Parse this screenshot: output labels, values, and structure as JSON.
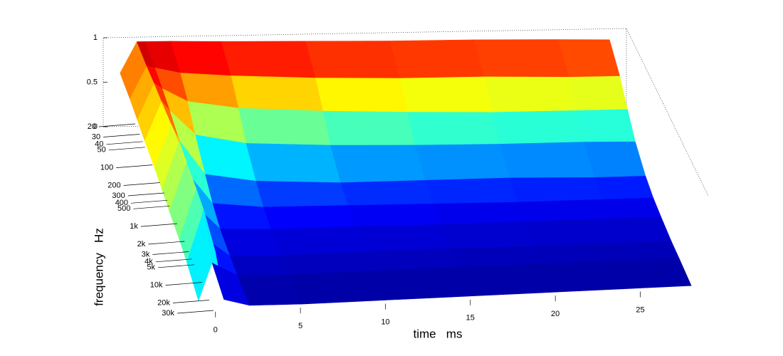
{
  "chart_data": {
    "type": "surface",
    "colormap": "jet",
    "x_label": "time   ms",
    "y_label": "frequency   Hz",
    "x": [
      -1,
      0,
      0.5,
      2,
      5,
      10,
      15,
      20,
      25,
      28
    ],
    "y": [
      20,
      50,
      100,
      200,
      500,
      1000,
      2000,
      5000,
      10000,
      30000
    ],
    "z": [
      [
        0.6,
        0.95,
        0.95,
        0.95,
        0.94,
        0.93,
        0.92,
        0.92,
        0.91,
        0.9
      ],
      [
        0.55,
        0.9,
        0.88,
        0.82,
        0.78,
        0.74,
        0.72,
        0.72,
        0.7,
        0.7
      ],
      [
        0.5,
        0.88,
        0.82,
        0.68,
        0.6,
        0.55,
        0.52,
        0.5,
        0.5,
        0.5
      ],
      [
        0.45,
        0.85,
        0.75,
        0.5,
        0.4,
        0.36,
        0.34,
        0.33,
        0.33,
        0.32
      ],
      [
        0.4,
        0.82,
        0.65,
        0.32,
        0.24,
        0.2,
        0.2,
        0.2,
        0.18,
        0.18
      ],
      [
        0.35,
        0.8,
        0.5,
        0.2,
        0.15,
        0.14,
        0.13,
        0.12,
        0.12,
        0.12
      ],
      [
        0.3,
        0.75,
        0.35,
        0.12,
        0.1,
        0.1,
        0.09,
        0.09,
        0.09,
        0.09
      ],
      [
        0.25,
        0.7,
        0.25,
        0.08,
        0.07,
        0.07,
        0.07,
        0.06,
        0.06,
        0.06
      ],
      [
        0.2,
        0.65,
        0.18,
        0.06,
        0.05,
        0.05,
        0.05,
        0.05,
        0.05,
        0.05
      ],
      [
        0.1,
        0.5,
        0.1,
        0.04,
        0.03,
        0.03,
        0.03,
        0.03,
        0.03,
        0.03
      ]
    ],
    "xlim": [
      -2,
      29
    ],
    "ylim": [
      20,
      30000
    ],
    "zlim": [
      0,
      1
    ],
    "ylog": true,
    "xticks": [
      0,
      5,
      10,
      15,
      20,
      25
    ],
    "yticks": [
      20,
      30,
      40,
      50,
      100,
      200,
      300,
      400,
      500,
      {
        "value": 1000,
        "label": "1k"
      },
      {
        "value": 2000,
        "label": "2k"
      },
      {
        "value": 3000,
        "label": "3k"
      },
      {
        "value": 4000,
        "label": "4k"
      },
      {
        "value": 5000,
        "label": "5k"
      },
      {
        "value": 10000,
        "label": "10k"
      },
      {
        "value": 20000,
        "label": "20k"
      },
      {
        "value": 30000,
        "label": "30k"
      }
    ],
    "zticks": [
      0,
      0.5,
      1
    ]
  }
}
